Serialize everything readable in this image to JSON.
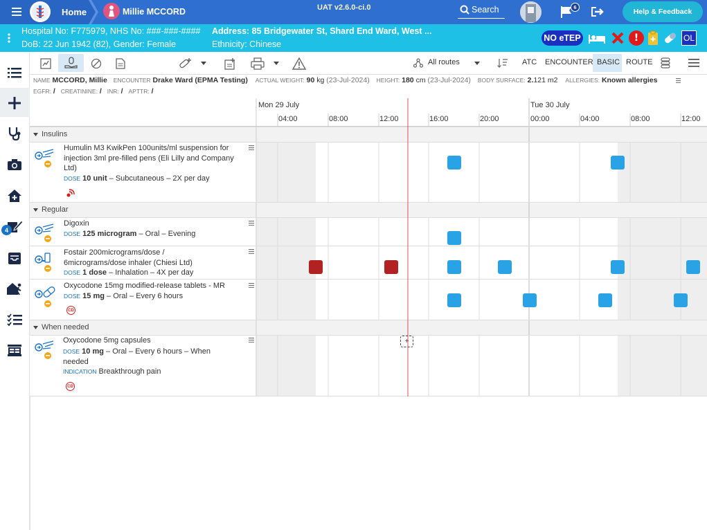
{
  "header": {
    "home_label": "Home",
    "patient_name": "Millie MCCORD",
    "version": "UAT v2.6.0-ci.0",
    "search_label": "Search",
    "flag_count": "6",
    "help_label": "Help & Feedback",
    "colors": {
      "bar": "#2f6fcf",
      "patient_bar": "#1ec0e6"
    }
  },
  "patient": {
    "hospital_line": "Hospital No: F775979, NHS No: ###-###-####",
    "dob_line": "DoB: 22 Jun 1942 (82), Gender: Female",
    "address_line": "Address: 85 Bridgewater St, Shard End Ward, West ...",
    "ethnicity_line": "Ethnicity: Chinese",
    "no_etep_label": "NO eTEP",
    "ol_label": "OL"
  },
  "leftnav": {
    "badge_count": "4"
  },
  "toolbar": {
    "routes_label": "All routes",
    "atc_label": "ATC",
    "encounter_label": "ENCOUNTER",
    "basic_label": "BASIC",
    "route_label": "ROUTE"
  },
  "info": {
    "name_label": "NAME",
    "name_value": "MCCORD, Millie",
    "encounter_label": "ENCOUNTER",
    "encounter_value": "Drake Ward (EPMA Testing)",
    "weight_label": "ACTUAL WEIGHT:",
    "weight_value": "90",
    "weight_unit": "kg",
    "weight_date": "(23-Jul-2024)",
    "height_label": "HEIGHT:",
    "height_value": "180",
    "height_unit": "cm",
    "height_date": "(23-Jul-2024)",
    "surface_label": "BODY SURFACE:",
    "surface_value": "2.",
    "surface_value2": "121",
    "surface_unit": "m2",
    "allergies_label": "ALLERGIES:",
    "allergies_value": "Known allergies",
    "egfr_label": "EGFR:",
    "creatinine_label": "CREATININE:",
    "inr_label": "INR:",
    "apttr_label": "APTTR:",
    "slash": "/"
  },
  "timeline": {
    "days": [
      "Mon 29 July",
      "Tue 30 July"
    ],
    "hours": [
      "04:00",
      "08:00",
      "12:00",
      "16:00",
      "20:00",
      "00:00",
      "04:00",
      "08:00",
      "12:00"
    ]
  },
  "sections": {
    "insulins": "Insulins",
    "regular": "Regular",
    "when_needed": "When needed"
  },
  "drugs": {
    "humulin": {
      "name": "Humulin M3 KwikPen 100units/ml suspension for injection 3ml pre-filled pens (Eli Lilly and Company Ltd)",
      "dose_label": "DOSE",
      "dose_amount": "10 unit",
      "dose_rest": "– Subcutaneous – 2X per day"
    },
    "digoxin": {
      "name": "Digoxin",
      "dose_label": "DOSE",
      "dose_amount": "125 microgram",
      "dose_rest": "– Oral – Evening"
    },
    "fostair": {
      "name_line1": "Fostair 200micrograms/dose /",
      "name_line2": "6micrograms/dose inhaler (Chiesi Ltd)",
      "dose_label": "DOSE",
      "dose_amount": "1 dose",
      "dose_rest": "– Inhalation – 4X per day"
    },
    "oxy_mr": {
      "name": "Oxycodone 15mg modified-release tablets - MR",
      "dose_label": "DOSE",
      "dose_amount": "15 mg",
      "dose_rest": "– Oral – Every 6 hours",
      "cd": "CD"
    },
    "oxy_caps": {
      "name": "Oxycodone 5mg capsules",
      "dose_label": "DOSE",
      "dose_amount": "10 mg",
      "dose_rest": "– Oral – Every 6 hours – When",
      "dose_rest2": "needed",
      "ind_label": "INDICATION",
      "ind_value": "Breakthrough pain",
      "cd": "CD",
      "plus": "+"
    }
  },
  "colors": {
    "scheduled": "#2aa3e6",
    "missed": "#b22222",
    "now_line": "#e05050"
  }
}
